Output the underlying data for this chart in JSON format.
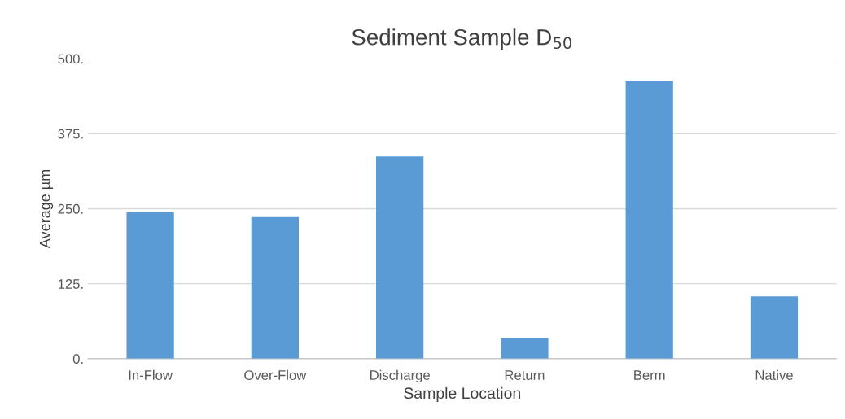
{
  "chart_data": {
    "type": "bar",
    "title": "Sediment Sample D$_{50}$",
    "xlabel": "Sample Location",
    "ylabel": "Average µm",
    "categories": [
      "In-Flow",
      "Over-Flow",
      "Discharge",
      "Return",
      "Berm",
      "Native"
    ],
    "values": [
      244,
      236,
      337,
      34,
      462,
      104
    ],
    "color": "#5b9bd5",
    "ylim": [
      0,
      500
    ],
    "yticks": [
      {
        "value": 0,
        "label": "0."
      },
      {
        "value": 125,
        "label": "125."
      },
      {
        "value": 250,
        "label": "250."
      },
      {
        "value": 375,
        "label": "375."
      },
      {
        "value": 500,
        "label": "500."
      }
    ],
    "grid": "y",
    "legend": false
  }
}
